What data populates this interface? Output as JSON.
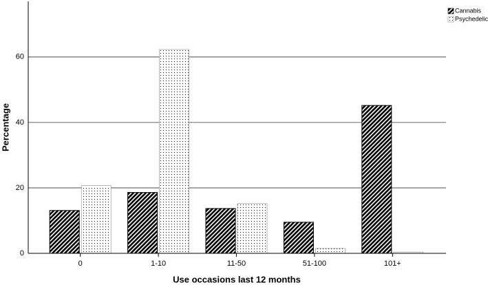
{
  "chart_data": {
    "type": "bar",
    "x_label": "Use occasions last 12 months",
    "y_label": "Percentage",
    "categories": [
      "0",
      "1-10",
      "11-50",
      "51-100",
      "101+"
    ],
    "series": [
      {
        "name": "Cannabis",
        "color": "#000000",
        "values": [
          13.1,
          18.6,
          13.7,
          9.5,
          45.2
        ]
      },
      {
        "name": "Psychedelic",
        "color": "#000000",
        "values": [
          20.7,
          62.3,
          15.2,
          1.5,
          0.4
        ]
      }
    ],
    "ylim": [
      0,
      77
    ],
    "yticks": [
      0,
      20,
      40,
      60
    ],
    "grid": true
  }
}
